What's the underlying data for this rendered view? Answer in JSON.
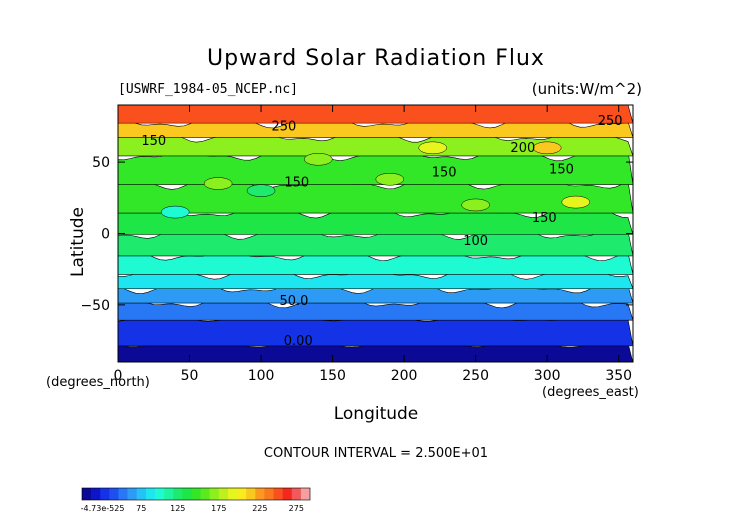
{
  "chart_data": {
    "type": "heatmap",
    "title": "Upward Solar Radiation Flux",
    "file_label": "[USWRF_1984-05_NCEP.nc]",
    "units_label": "(units:W/m^2)",
    "xlabel": "Longitude",
    "ylabel": "Latitude",
    "x_units": "(degrees_north)",
    "x_units_east": "(degrees_east)",
    "contour_interval": "CONTOUR INTERVAL = 2.500E+01",
    "xlim": [
      0,
      360
    ],
    "ylim": [
      -90,
      90
    ],
    "x_ticks": [
      0,
      50,
      100,
      150,
      200,
      250,
      300,
      350
    ],
    "x_tick_labels": [
      "0",
      "50",
      "100",
      "150",
      "200",
      "250",
      "300",
      "350"
    ],
    "y_ticks": [
      -50,
      0,
      50
    ],
    "y_tick_labels": [
      "−50",
      "0",
      "50"
    ],
    "bands": [
      {
        "lat_min": -90,
        "lat_max": -78,
        "value": 0
      },
      {
        "lat_min": -78,
        "lat_max": -60,
        "value": 25
      },
      {
        "lat_min": -60,
        "lat_max": -48,
        "value": 50
      },
      {
        "lat_min": -48,
        "lat_max": -38,
        "value": 70
      },
      {
        "lat_min": -38,
        "lat_max": -28,
        "value": 85
      },
      {
        "lat_min": -28,
        "lat_max": -15,
        "value": 100
      },
      {
        "lat_min": -15,
        "lat_max": 0,
        "value": 125
      },
      {
        "lat_min": 0,
        "lat_max": 15,
        "value": 140
      },
      {
        "lat_min": 15,
        "lat_max": 35,
        "value": 150
      },
      {
        "lat_min": 35,
        "lat_max": 55,
        "value": 150
      },
      {
        "lat_min": 55,
        "lat_max": 68,
        "value": 175
      },
      {
        "lat_min": 68,
        "lat_max": 78,
        "value": 225
      },
      {
        "lat_min": 78,
        "lat_max": 90,
        "value": 260
      }
    ],
    "contour_labels": [
      {
        "text": "0.00",
        "x": 126,
        "y": -78
      },
      {
        "text": "50.0",
        "x": 123,
        "y": -50
      },
      {
        "text": "100",
        "x": 250,
        "y": -8
      },
      {
        "text": "150",
        "x": 25,
        "y": 62
      },
      {
        "text": "150",
        "x": 125,
        "y": 33
      },
      {
        "text": "150",
        "x": 228,
        "y": 40
      },
      {
        "text": "150",
        "x": 310,
        "y": 42
      },
      {
        "text": "150",
        "x": 298,
        "y": 8
      },
      {
        "text": "200",
        "x": 283,
        "y": 57
      },
      {
        "text": "250",
        "x": 116,
        "y": 72
      },
      {
        "text": "250",
        "x": 344,
        "y": 76
      }
    ],
    "colorbar": {
      "tick_labels": [
        "-4.73e-525",
        "75",
        "125",
        "175",
        "225",
        "275"
      ],
      "colors": [
        "#0a0a96",
        "#0e14c8",
        "#1432e6",
        "#1e50f0",
        "#2878f5",
        "#2d9bf5",
        "#23c3f5",
        "#1ee6f0",
        "#1efad2",
        "#1ef5a0",
        "#1eeb6e",
        "#1ee646",
        "#32e628",
        "#5aeb1e",
        "#8cf01e",
        "#bef01e",
        "#e6f51e",
        "#faeb1e",
        "#fac81e",
        "#fa9b1e",
        "#fa781e",
        "#fa501e",
        "#f5281e",
        "#f05a5a",
        "#f5a0a0"
      ]
    }
  }
}
